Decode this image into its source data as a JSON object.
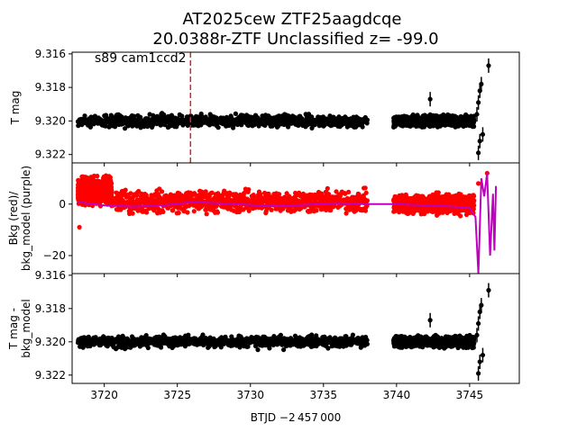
{
  "figure": {
    "title_line1": "AT2025cew  ZTF25aagdcqe",
    "title_line2": "20.0388r-ZTF Unclassified z= -99.0",
    "annotation": "s89 cam1ccd2",
    "xlabel": "BTJD −2 457 000"
  },
  "chart_data": [
    {
      "type": "scatter",
      "panel": "top",
      "ylabel": "T mag",
      "x_range": [
        3717.8,
        3748.4
      ],
      "ylim": [
        9.3225,
        9.3159
      ],
      "y_inverted": true,
      "x_ticks": [
        3720,
        3725,
        3730,
        3735,
        3740,
        3745
      ],
      "y_ticks": [
        9.316,
        9.318,
        9.32,
        9.322
      ],
      "y_tick_labels": [
        "9.316",
        "9.318",
        "9.320",
        "9.322"
      ],
      "vertical_line": {
        "x": 3725.9,
        "color": "#d62728",
        "style": "dashed"
      },
      "segments": [
        {
          "x_start": 3718.2,
          "x_end": 3738.0,
          "y_center": 9.32,
          "y_spread": 0.0009,
          "color": "#000000"
        },
        {
          "x_start": 3739.8,
          "x_end": 3745.3,
          "y_center": 9.32,
          "y_spread": 0.0008,
          "color": "#000000"
        }
      ],
      "points": [
        {
          "x": 3742.3,
          "y": 9.3187
        },
        {
          "x": 3745.5,
          "y": 9.3196
        },
        {
          "x": 3745.6,
          "y": 9.3189
        },
        {
          "x": 3745.7,
          "y": 9.3182
        },
        {
          "x": 3745.8,
          "y": 9.3178
        },
        {
          "x": 3745.7,
          "y": 9.3212
        },
        {
          "x": 3745.6,
          "y": 9.3219
        },
        {
          "x": 3745.9,
          "y": 9.3208
        },
        {
          "x": 3746.3,
          "y": 9.3167
        }
      ]
    },
    {
      "type": "scatter",
      "panel": "middle",
      "ylabel": "Bkg (red)/\nbkg_model (purple)",
      "x_range": [
        3717.8,
        3748.4
      ],
      "ylim": [
        -27,
        16
      ],
      "x_ticks": [
        3720,
        3725,
        3730,
        3735,
        3740,
        3745
      ],
      "y_ticks": [
        0,
        -20
      ],
      "y_tick_labels": [
        "0",
        "−20"
      ],
      "series": [
        {
          "name": "Bkg",
          "color": "#ff0000",
          "segments": [
            {
              "x_start": 3718.2,
              "x_end": 3720.5,
              "y_center": 5,
              "y_spread": 7
            },
            {
              "x_start": 3720.5,
              "x_end": 3738.0,
              "y_center": 1,
              "y_spread": 6
            },
            {
              "x_start": 3739.8,
              "x_end": 3745.3,
              "y_center": 0,
              "y_spread": 5
            }
          ],
          "points": [
            {
              "x": 3718.3,
              "y": -9
            },
            {
              "x": 3745.6,
              "y": 8
            },
            {
              "x": 3746.2,
              "y": 12
            }
          ]
        },
        {
          "name": "bkg_model",
          "color": "#bf00bf",
          "line": [
            {
              "x": 3718.2,
              "y": 0.8
            },
            {
              "x": 3720.0,
              "y": -0.5
            },
            {
              "x": 3722.0,
              "y": -1.0
            },
            {
              "x": 3724.0,
              "y": -0.5
            },
            {
              "x": 3726.0,
              "y": 0.8
            },
            {
              "x": 3728.0,
              "y": 0.3
            },
            {
              "x": 3730.0,
              "y": -0.3
            },
            {
              "x": 3732.0,
              "y": -0.8
            },
            {
              "x": 3734.0,
              "y": -0.2
            },
            {
              "x": 3736.0,
              "y": 0.4
            },
            {
              "x": 3738.0,
              "y": 0.0
            },
            {
              "x": 3740.0,
              "y": 0.0
            },
            {
              "x": 3742.0,
              "y": -0.5
            },
            {
              "x": 3744.0,
              "y": -1.0
            },
            {
              "x": 3745.0,
              "y": -1.5
            },
            {
              "x": 3745.4,
              "y": -5.0
            },
            {
              "x": 3745.6,
              "y": -27.0
            },
            {
              "x": 3745.8,
              "y": 10.0
            },
            {
              "x": 3746.0,
              "y": 3.0
            },
            {
              "x": 3746.2,
              "y": 12.0
            },
            {
              "x": 3746.4,
              "y": -20.0
            },
            {
              "x": 3746.6,
              "y": 4.0
            },
            {
              "x": 3746.7,
              "y": -18.0
            },
            {
              "x": 3746.8,
              "y": 7.0
            }
          ]
        }
      ]
    },
    {
      "type": "scatter",
      "panel": "bottom",
      "ylabel": "T mag -\nbkg_model",
      "x_range": [
        3717.8,
        3748.4
      ],
      "ylim": [
        9.3225,
        9.3159
      ],
      "y_inverted": true,
      "x_ticks": [
        3720,
        3725,
        3730,
        3735,
        3740,
        3745
      ],
      "x_tick_labels": [
        "3720",
        "3725",
        "3730",
        "3735",
        "3740",
        "3745"
      ],
      "y_ticks": [
        9.316,
        9.318,
        9.32,
        9.322
      ],
      "y_tick_labels": [
        "9.316",
        "9.318",
        "9.320",
        "9.322"
      ],
      "segments": [
        {
          "x_start": 3718.2,
          "x_end": 3738.0,
          "y_center": 9.32,
          "y_spread": 0.0009,
          "color": "#000000"
        },
        {
          "x_start": 3739.8,
          "x_end": 3745.3,
          "y_center": 9.32,
          "y_spread": 0.0008,
          "color": "#000000"
        }
      ],
      "points": [
        {
          "x": 3742.3,
          "y": 9.3187
        },
        {
          "x": 3745.5,
          "y": 9.3196
        },
        {
          "x": 3745.6,
          "y": 9.3189
        },
        {
          "x": 3745.7,
          "y": 9.3182
        },
        {
          "x": 3745.8,
          "y": 9.3178
        },
        {
          "x": 3745.7,
          "y": 9.3212
        },
        {
          "x": 3745.6,
          "y": 9.3219
        },
        {
          "x": 3745.9,
          "y": 9.3208
        },
        {
          "x": 3746.3,
          "y": 9.3169
        }
      ]
    }
  ]
}
